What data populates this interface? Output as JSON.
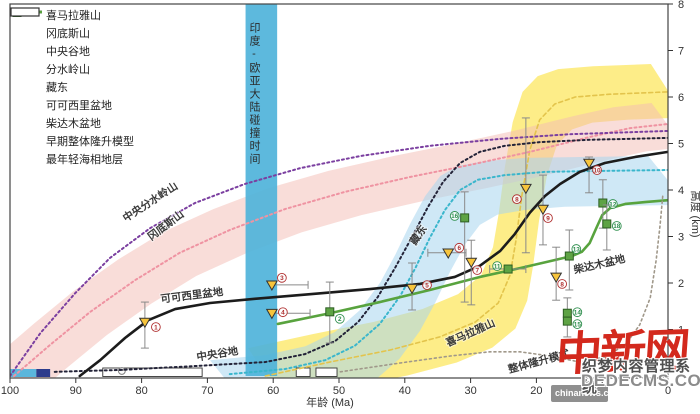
{
  "legend": {
    "items": [
      {
        "label": "喜马拉雅山",
        "marker": "dots",
        "color": "#ddbf62"
      },
      {
        "label": "冈底斯山",
        "marker": "dots",
        "color": "#ef93a2"
      },
      {
        "label": "中央谷地",
        "marker": "dots",
        "color": "#232338"
      },
      {
        "label": "分水岭山",
        "marker": "dots",
        "color": "#7b3fa0"
      },
      {
        "label": "藏东",
        "marker": "dots",
        "color": "#3ab6cc"
      },
      {
        "label": "可可西里盆地",
        "marker": "tri-line",
        "color": "#1c1c1c",
        "fill": "#f7c53d"
      },
      {
        "label": "柴达木盆地",
        "marker": "sq-line",
        "color": "#58a33e",
        "fill": "#5ea344"
      },
      {
        "label": "早期整体隆升模型",
        "marker": "dots",
        "color": "#a39a8c"
      },
      {
        "label": "最年轻海相地层",
        "marker": "rect",
        "color": "#333333",
        "fill": "#ffffff"
      }
    ]
  },
  "axes": {
    "x": {
      "label": "年龄 (Ma)",
      "ticks": [
        100,
        90,
        80,
        70,
        60,
        50,
        40,
        30,
        20,
        10,
        0
      ]
    },
    "y": {
      "label": "高度 (km)",
      "ticks": [
        1,
        2,
        3,
        4,
        5,
        6,
        7,
        8
      ]
    }
  },
  "watermark": {
    "logo": "中新网",
    "cms": "织梦内容管理系统",
    "dede": "DEDECMS.COM",
    "site": "chinanews.com"
  },
  "chart_data": {
    "type": "line",
    "xlabel": "年龄 (Ma)",
    "ylabel": "高度 (km)",
    "xlim": [
      100,
      0
    ],
    "ylim": [
      0,
      8
    ],
    "collision_band": {
      "span": [
        64.2,
        59.4
      ],
      "label": "印度-欧亚大陆碰撞时间",
      "color": "#4fb3da"
    },
    "tethys_bars": [
      {
        "span": [
          100,
          96.0
        ],
        "color": "#5ab6dc"
      },
      {
        "span": [
          96.0,
          93.9
        ],
        "color": "#2c3c8c"
      }
    ],
    "marine_strata_spans_ma": [
      [
        85.9,
        70.8
      ],
      [
        56.5,
        54.4
      ],
      [
        53.5,
        50.3
      ]
    ],
    "fossil_symbol_ma": 83,
    "series": [
      {
        "id": "himalaya",
        "name": "喜马拉雅山",
        "color": "#e3c44c",
        "dash": "4 3",
        "w": 1.6,
        "band": {
          "dx": 2.6,
          "up": 0.6,
          "dn": 0.55,
          "color": "#fce96a",
          "op": 0.8
        },
        "points": [
          [
            61.2,
            0
          ],
          [
            51.4,
            0.3
          ],
          [
            42.2,
            0.56
          ],
          [
            34.7,
            0.84
          ],
          [
            29.3,
            1.16
          ],
          [
            25.8,
            1.57
          ],
          [
            24,
            2.17
          ],
          [
            23.1,
            2.92
          ],
          [
            22.2,
            3.89
          ],
          [
            21,
            4.86
          ],
          [
            19.5,
            5.51
          ],
          [
            17.2,
            5.85
          ],
          [
            14.1,
            6.0
          ],
          [
            8.8,
            6.06
          ],
          [
            0,
            6.11
          ]
        ]
      },
      {
        "id": "gangdise",
        "name": "冈底斯山",
        "color": "#ef93a2",
        "dash": "2 3",
        "w": 2,
        "band": {
          "dx": 2.5,
          "up": 0.45,
          "dn": 0.5,
          "color": "#f3bcb4",
          "op": 0.5
        },
        "points": [
          [
            99.4,
            0
          ],
          [
            93.9,
            0.67
          ],
          [
            87.8,
            1.38
          ],
          [
            81,
            2.06
          ],
          [
            74.2,
            2.65
          ],
          [
            66.6,
            3.14
          ],
          [
            58.2,
            3.59
          ],
          [
            49.1,
            3.96
          ],
          [
            39.2,
            4.28
          ],
          [
            30.1,
            4.54
          ],
          [
            21,
            4.82
          ],
          [
            11.9,
            5.14
          ],
          [
            5.8,
            5.33
          ],
          [
            0,
            5.42
          ]
        ]
      },
      {
        "id": "watershed",
        "name": "分水岭山",
        "color": "#7b3fa0",
        "dash": "2 3",
        "w": 2,
        "points": [
          [
            100,
            0
          ],
          [
            95.4,
            0.92
          ],
          [
            90.1,
            1.78
          ],
          [
            84.8,
            2.54
          ],
          [
            78.7,
            3.18
          ],
          [
            71.9,
            3.72
          ],
          [
            64.3,
            4.13
          ],
          [
            55.9,
            4.47
          ],
          [
            46.8,
            4.73
          ],
          [
            36.2,
            4.95
          ],
          [
            25.5,
            5.1
          ],
          [
            14.9,
            5.2
          ],
          [
            0,
            5.27
          ]
        ]
      },
      {
        "id": "central-valley",
        "name": "中央谷地",
        "color": "#232338",
        "dash": "2 3",
        "w": 2,
        "points": [
          [
            93.2,
            0.09
          ],
          [
            83.3,
            0.13
          ],
          [
            71.1,
            0.22
          ],
          [
            61.2,
            0.3
          ],
          [
            55.2,
            0.47
          ],
          [
            50.6,
            0.75
          ],
          [
            47.1,
            1.16
          ],
          [
            44.1,
            1.7
          ],
          [
            41.5,
            2.32
          ],
          [
            38.9,
            2.99
          ],
          [
            36.5,
            3.63
          ],
          [
            34.2,
            4.17
          ],
          [
            31.6,
            4.58
          ],
          [
            28.6,
            4.82
          ],
          [
            24.8,
            4.95
          ],
          [
            19.5,
            5.03
          ],
          [
            11.9,
            5.08
          ],
          [
            0,
            5.12
          ]
        ]
      },
      {
        "id": "zangdong",
        "name": "藏东",
        "color": "#3ab6cc",
        "dash": "2 3",
        "w": 2,
        "band": {
          "dx": 3,
          "up": 0.3,
          "dn": 0.75,
          "color": "#a8d5ee",
          "op": 0.55
        },
        "points": [
          [
            66.6,
            0.04
          ],
          [
            58.2,
            0.15
          ],
          [
            52.1,
            0.34
          ],
          [
            47.6,
            0.65
          ],
          [
            43.8,
            1.12
          ],
          [
            40.7,
            1.72
          ],
          [
            38.4,
            2.32
          ],
          [
            36.2,
            2.97
          ],
          [
            33.9,
            3.57
          ],
          [
            31.6,
            4.0
          ],
          [
            28.9,
            4.22
          ],
          [
            24.8,
            4.32
          ],
          [
            18.7,
            4.39
          ],
          [
            10.3,
            4.41
          ],
          [
            0,
            4.43
          ]
        ]
      },
      {
        "id": "hohxil-curve",
        "name": "可可西里盆地",
        "color": "#1c1c1c",
        "w": 2.6,
        "points": [
          [
            89.4,
            0
          ],
          [
            86.3,
            0.34
          ],
          [
            82.5,
            0.82
          ],
          [
            79,
            1.2
          ],
          [
            74.9,
            1.44
          ],
          [
            69.6,
            1.57
          ],
          [
            62.8,
            1.66
          ],
          [
            54.4,
            1.76
          ],
          [
            45.3,
            1.87
          ],
          [
            37.7,
            1.98
          ],
          [
            32.4,
            2.13
          ],
          [
            28.6,
            2.37
          ],
          [
            25.5,
            2.69
          ],
          [
            23.3,
            3.05
          ],
          [
            21,
            3.51
          ],
          [
            18.7,
            3.87
          ],
          [
            16.4,
            4.13
          ],
          [
            13.4,
            4.39
          ],
          [
            9.6,
            4.58
          ],
          [
            5,
            4.71
          ],
          [
            0,
            4.82
          ]
        ]
      },
      {
        "id": "qaidam-curve",
        "name": "柴达木盆地",
        "color": "#58a33e",
        "w": 2.6,
        "points": [
          [
            59.3,
            1.12
          ],
          [
            51.4,
            1.35
          ],
          [
            43.8,
            1.59
          ],
          [
            36.2,
            1.85
          ],
          [
            28.6,
            2.13
          ],
          [
            22.5,
            2.32
          ],
          [
            17.9,
            2.47
          ],
          [
            14.6,
            2.58
          ],
          [
            13.1,
            2.67
          ],
          [
            11.9,
            2.86
          ],
          [
            10.9,
            3.18
          ],
          [
            10,
            3.46
          ],
          [
            8.8,
            3.61
          ],
          [
            6.5,
            3.7
          ],
          [
            3.5,
            3.74
          ],
          [
            0,
            3.78
          ]
        ]
      },
      {
        "id": "early-model",
        "name": "早期整体隆升模型",
        "color": "#a0988a",
        "dash": "2 3",
        "w": 1.6,
        "points": [
          [
            49.8,
            0.09
          ],
          [
            40.7,
            0.28
          ],
          [
            33.1,
            0.43
          ],
          [
            27.1,
            0.52
          ],
          [
            22.5,
            0.52
          ],
          [
            17.9,
            0.43
          ],
          [
            13.4,
            0.3
          ],
          [
            9.6,
            0.41
          ],
          [
            6.5,
            0.67
          ],
          [
            4.3,
            1.1
          ],
          [
            2.7,
            1.68
          ],
          [
            1.8,
            2.49
          ],
          [
            1.2,
            3.25
          ],
          [
            0.8,
            3.87
          ]
        ]
      }
    ],
    "points": [
      {
        "series": "hohxil",
        "n": 1,
        "ma": 79.5,
        "km": 1.16,
        "err": {
          "t": "v",
          "lo": 0.6,
          "hi": 1.59
        },
        "lo": [
          11,
          5
        ]
      },
      {
        "series": "hohxil",
        "n": 3,
        "ma": 60.2,
        "km": 1.96,
        "err": {
          "t": "h",
          "lo": 54.7,
          "hi": 60.2
        },
        "lo": [
          10,
          -7
        ]
      },
      {
        "series": "hohxil",
        "n": 4,
        "ma": 60.2,
        "km": 1.35,
        "err": {
          "t": "h",
          "lo": 54.4,
          "hi": 60.2
        },
        "lo": [
          11,
          -1
        ]
      },
      {
        "series": "hohxil",
        "n": 5,
        "ma": 38.9,
        "km": 1.89,
        "err": {
          "t": "v",
          "lo": 1.42,
          "hi": 2.43
        },
        "lo": [
          15,
          -3
        ]
      },
      {
        "series": "hohxil",
        "n": 6,
        "ma": 33.4,
        "km": 2.65,
        "err": {
          "t": "h",
          "lo": 30.7,
          "hi": 36.5
        },
        "lo": [
          11,
          -5
        ]
      },
      {
        "series": "hohxil",
        "n": 7,
        "ma": 29.9,
        "km": 2.45,
        "err": {
          "t": "v",
          "lo": 1.53,
          "hi": 2.92
        },
        "lo": [
          6,
          8
        ]
      },
      {
        "series": "hohxil",
        "n": 8,
        "ma": 21.6,
        "km": 4.04,
        "err": {
          "t": "v",
          "lo": 2.65,
          "hi": 5.55
        },
        "lo": [
          -9,
          11
        ]
      },
      {
        "series": "hohxil",
        "n": 9,
        "ma": 19.0,
        "km": 3.59,
        "err": {
          "t": "v",
          "lo": 2.82,
          "hi": 4.32
        },
        "lo": [
          5,
          9
        ]
      },
      {
        "series": "hohxil",
        "n": 8,
        "ma": 17.0,
        "km": 2.13,
        "err": {
          "t": "v",
          "lo": 1.63,
          "hi": 2.77
        },
        "lo": [
          6,
          7
        ]
      },
      {
        "series": "hohxil",
        "n": 10,
        "ma": 12.0,
        "km": 4.58,
        "err": {
          "t": "v",
          "lo": 3.94,
          "hi": 4.71
        },
        "lo": [
          8,
          7
        ]
      },
      {
        "series": "qaidam",
        "n": 2,
        "ma": 51.4,
        "km": 1.38,
        "err": {
          "t": "v",
          "lo": 0.71,
          "hi": 2.02
        },
        "lo": [
          10,
          7
        ]
      },
      {
        "series": "qaidam",
        "n": 16,
        "ma": 30.9,
        "km": 3.4,
        "err": {
          "t": "v",
          "lo": 1.59,
          "hi": 3.96
        },
        "lo": [
          -10,
          -2
        ]
      },
      {
        "series": "qaidam",
        "n": 11,
        "ma": 24.3,
        "km": 2.3,
        "err": {
          "t": "h",
          "lo": 21.6,
          "hi": 27.1
        },
        "lo": [
          -11,
          -3
        ]
      },
      {
        "series": "qaidam",
        "n": 13,
        "ma": 15.0,
        "km": 2.58,
        "err": {
          "t": "v",
          "lo": 1.85,
          "hi": 3.14
        },
        "lo": [
          7,
          -7
        ]
      },
      {
        "series": "qaidam",
        "n": 12,
        "ma": 9.9,
        "km": 3.72,
        "err": {
          "t": "v",
          "lo": 3.18,
          "hi": 4.22
        },
        "lo": [
          10,
          1
        ]
      },
      {
        "series": "qaidam",
        "n": 18,
        "ma": 9.3,
        "km": 3.27,
        "err": {
          "t": "v",
          "lo": 2.71,
          "hi": 3.68
        },
        "lo": [
          10,
          2
        ]
      },
      {
        "series": "qaidam",
        "n": 14,
        "ma": 15.3,
        "km": 1.35,
        "err": {
          "t": "v",
          "lo": 0.84,
          "hi": 1.68
        },
        "lo": [
          10,
          -1
        ]
      },
      {
        "series": "qaidam",
        "n": 15,
        "ma": 15.3,
        "km": 1.18,
        "lo": [
          10,
          3
        ]
      }
    ],
    "point_colors": {
      "hohxil": "#b03030",
      "qaidam": "#2f8f4e"
    },
    "labels": [
      {
        "text": "中央分水岭山",
        "ma": 78.4,
        "km": 3.68,
        "rot": -33
      },
      {
        "text": "冈底斯山",
        "ma": 76.0,
        "km": 3.18,
        "rot": -37
      },
      {
        "text": "可可西里盆地",
        "ma": 72.3,
        "km": 1.66,
        "rot": -7
      },
      {
        "text": "中央谷地",
        "ma": 68.4,
        "km": 0.4,
        "rot": -9
      },
      {
        "text": "藏东",
        "ma": 37.5,
        "km": 2.99,
        "rot": -55
      },
      {
        "text": "喜马拉雅山",
        "ma": 29.8,
        "km": 0.86,
        "rot": -24
      },
      {
        "text": "柴达木盆地",
        "ma": 10.3,
        "km": 2.33,
        "rot": -13
      },
      {
        "text": "整体隆升模式",
        "ma": 19.5,
        "km": 0.24,
        "rot": -15
      }
    ]
  }
}
